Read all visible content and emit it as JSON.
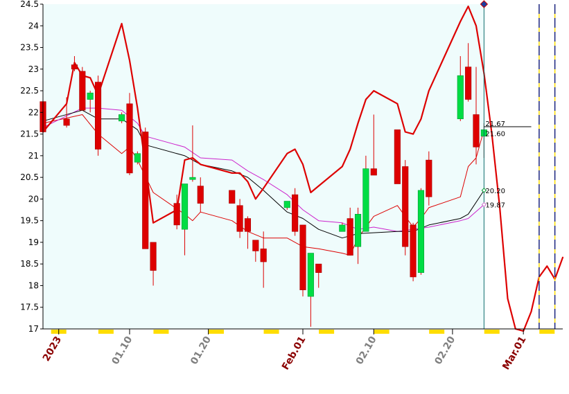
{
  "chart_data": {
    "type": "candlestick",
    "ylim": [
      17,
      24.5
    ],
    "y_ticks": [
      "24.5",
      "24",
      "23.5",
      "23",
      "22.5",
      "22",
      "21.5",
      "21",
      "20.5",
      "20",
      "19.5",
      "19",
      "18.5",
      "18",
      "17.5",
      "17"
    ],
    "x_date_range": [
      "2022-12-30",
      "2023-03-06"
    ],
    "x_tick_labels": [
      {
        "date": "2023-01-01",
        "label": "2023",
        "color": "#8b0000"
      },
      {
        "date": "2023-01-10",
        "label": "01.10",
        "color": "#808080"
      },
      {
        "date": "2023-01-20",
        "label": "01.20",
        "color": "#808080"
      },
      {
        "date": "2023-02-01",
        "label": "Feb.01",
        "color": "#8b0000"
      },
      {
        "date": "2023-02-10",
        "label": "02.10",
        "color": "#808080"
      },
      {
        "date": "2023-02-20",
        "label": "02.20",
        "color": "#808080"
      },
      {
        "date": "2023-03-01",
        "label": "Mar.01",
        "color": "#8b0000"
      }
    ],
    "history_end": "2023-02-24",
    "colors": {
      "plot_bg": "#effcfc",
      "up": "#00dd44",
      "down": "#dd0000",
      "ma_black": "#000000",
      "ma_magenta": "#cc22cc",
      "band": "#dd0000",
      "projection": "#dd0000",
      "marker": "#ffdd00",
      "vline": "#1a237e"
    },
    "candles": [
      {
        "date": "2022-12-30",
        "open": 22.25,
        "high": 22.3,
        "low": 21.4,
        "close": 21.55
      },
      {
        "date": "2023-01-02",
        "open": 21.85,
        "high": 22.35,
        "low": 21.65,
        "close": 21.7
      },
      {
        "date": "2023-01-03",
        "open": 23.1,
        "high": 23.3,
        "low": 22.95,
        "close": 23.0
      },
      {
        "date": "2023-01-04",
        "open": 22.95,
        "high": 23.05,
        "low": 22.05,
        "close": 22.05
      },
      {
        "date": "2023-01-05",
        "open": 22.3,
        "high": 22.5,
        "low": 22.0,
        "close": 22.45
      },
      {
        "date": "2023-01-06",
        "open": 22.7,
        "high": 22.85,
        "low": 21.0,
        "close": 21.15
      },
      {
        "date": "2023-01-09",
        "open": 21.8,
        "high": 22.0,
        "low": 21.75,
        "close": 21.95
      },
      {
        "date": "2023-01-10",
        "open": 22.2,
        "high": 22.45,
        "low": 20.55,
        "close": 20.6
      },
      {
        "date": "2023-01-11",
        "open": 20.85,
        "high": 21.1,
        "low": 20.8,
        "close": 21.05
      },
      {
        "date": "2023-01-12",
        "open": 21.55,
        "high": 21.65,
        "low": 18.85,
        "close": 18.85
      },
      {
        "date": "2023-01-13",
        "open": 19.0,
        "high": 19.0,
        "low": 18.0,
        "close": 18.35
      },
      {
        "date": "2023-01-16",
        "open": 19.9,
        "high": 20.1,
        "low": 19.3,
        "close": 19.4
      },
      {
        "date": "2023-01-17",
        "open": 19.3,
        "high": 20.35,
        "low": 18.7,
        "close": 20.35
      },
      {
        "date": "2023-01-18",
        "open": 20.45,
        "high": 21.7,
        "low": 20.4,
        "close": 20.5
      },
      {
        "date": "2023-01-19",
        "open": 20.3,
        "high": 20.5,
        "low": 19.7,
        "close": 19.9
      },
      {
        "date": "2023-01-23",
        "open": 20.2,
        "high": 20.2,
        "low": 19.9,
        "close": 19.9
      },
      {
        "date": "2023-01-24",
        "open": 19.85,
        "high": 20.0,
        "low": 19.1,
        "close": 19.25
      },
      {
        "date": "2023-01-25",
        "open": 19.55,
        "high": 19.6,
        "low": 18.85,
        "close": 19.25
      },
      {
        "date": "2023-01-26",
        "open": 19.05,
        "high": 19.05,
        "low": 18.55,
        "close": 18.8
      },
      {
        "date": "2023-01-27",
        "open": 18.85,
        "high": 19.25,
        "low": 17.95,
        "close": 18.55
      },
      {
        "date": "2023-01-30",
        "open": 19.8,
        "high": 19.95,
        "low": 19.75,
        "close": 19.95
      },
      {
        "date": "2023-01-31",
        "open": 20.1,
        "high": 20.25,
        "low": 19.15,
        "close": 19.25
      },
      {
        "date": "2023-02-01",
        "open": 19.4,
        "high": 19.4,
        "low": 17.75,
        "close": 17.9
      },
      {
        "date": "2023-02-02",
        "open": 17.75,
        "high": 18.75,
        "low": 17.05,
        "close": 18.75
      },
      {
        "date": "2023-02-03",
        "open": 18.5,
        "high": 18.5,
        "low": 17.95,
        "close": 18.3
      },
      {
        "date": "2023-02-06",
        "open": 19.25,
        "high": 19.45,
        "low": 19.25,
        "close": 19.4
      },
      {
        "date": "2023-02-07",
        "open": 19.55,
        "high": 19.8,
        "low": 18.7,
        "close": 18.7
      },
      {
        "date": "2023-02-08",
        "open": 18.9,
        "high": 19.8,
        "low": 18.5,
        "close": 19.65
      },
      {
        "date": "2023-02-09",
        "open": 19.25,
        "high": 21.0,
        "low": 19.25,
        "close": 20.7
      },
      {
        "date": "2023-02-10",
        "open": 20.7,
        "high": 21.95,
        "low": 20.6,
        "close": 20.55
      },
      {
        "date": "2023-02-13",
        "open": 21.6,
        "high": 21.6,
        "low": 20.35,
        "close": 20.35
      },
      {
        "date": "2023-02-14",
        "open": 20.75,
        "high": 20.9,
        "low": 18.7,
        "close": 18.9
      },
      {
        "date": "2023-02-15",
        "open": 19.4,
        "high": 19.45,
        "low": 18.1,
        "close": 18.2
      },
      {
        "date": "2023-02-16",
        "open": 18.3,
        "high": 20.25,
        "low": 18.25,
        "close": 20.2
      },
      {
        "date": "2023-02-17",
        "open": 20.9,
        "high": 21.1,
        "low": 19.85,
        "close": 20.05
      },
      {
        "date": "2023-02-21",
        "open": 21.85,
        "high": 23.3,
        "low": 21.8,
        "close": 22.85
      },
      {
        "date": "2023-02-22",
        "open": 23.05,
        "high": 23.6,
        "low": 22.25,
        "close": 22.3
      },
      {
        "date": "2023-02-23",
        "open": 21.95,
        "high": 23.05,
        "low": 20.8,
        "close": 21.2
      },
      {
        "date": "2023-02-24",
        "open": 21.45,
        "high": 21.75,
        "low": 20.95,
        "close": 21.6
      }
    ],
    "ma_black": [
      {
        "date": "2022-12-30",
        "value": 21.8
      },
      {
        "date": "2023-01-04",
        "value": 22.05
      },
      {
        "date": "2023-01-06",
        "value": 21.85
      },
      {
        "date": "2023-01-09",
        "value": 21.85
      },
      {
        "date": "2023-01-11",
        "value": 21.6
      },
      {
        "date": "2023-01-12",
        "value": 21.25
      },
      {
        "date": "2023-01-17",
        "value": 21.0
      },
      {
        "date": "2023-01-19",
        "value": 20.8
      },
      {
        "date": "2023-01-23",
        "value": 20.65
      },
      {
        "date": "2023-01-25",
        "value": 20.5
      },
      {
        "date": "2023-01-27",
        "value": 20.2
      },
      {
        "date": "2023-01-30",
        "value": 19.7
      },
      {
        "date": "2023-02-01",
        "value": 19.55
      },
      {
        "date": "2023-02-03",
        "value": 19.3
      },
      {
        "date": "2023-02-06",
        "value": 19.1
      },
      {
        "date": "2023-02-08",
        "value": 19.2
      },
      {
        "date": "2023-02-13",
        "value": 19.25
      },
      {
        "date": "2023-02-15",
        "value": 19.25
      },
      {
        "date": "2023-02-17",
        "value": 19.4
      },
      {
        "date": "2023-02-21",
        "value": 19.55
      },
      {
        "date": "2023-02-22",
        "value": 19.65
      },
      {
        "date": "2023-02-24",
        "value": 20.2
      }
    ],
    "ma_magenta": [
      {
        "date": "2022-12-30",
        "value": 21.65
      },
      {
        "date": "2023-01-04",
        "value": 22.1
      },
      {
        "date": "2023-01-06",
        "value": 22.1
      },
      {
        "date": "2023-01-09",
        "value": 22.05
      },
      {
        "date": "2023-01-11",
        "value": 21.75
      },
      {
        "date": "2023-01-12",
        "value": 21.45
      },
      {
        "date": "2023-01-17",
        "value": 21.2
      },
      {
        "date": "2023-01-19",
        "value": 20.95
      },
      {
        "date": "2023-01-23",
        "value": 20.9
      },
      {
        "date": "2023-01-25",
        "value": 20.65
      },
      {
        "date": "2023-01-27",
        "value": 20.45
      },
      {
        "date": "2023-01-30",
        "value": 20.1
      },
      {
        "date": "2023-02-01",
        "value": 19.75
      },
      {
        "date": "2023-02-03",
        "value": 19.5
      },
      {
        "date": "2023-02-06",
        "value": 19.45
      },
      {
        "date": "2023-02-08",
        "value": 19.3
      },
      {
        "date": "2023-02-10",
        "value": 19.35
      },
      {
        "date": "2023-02-13",
        "value": 19.25
      },
      {
        "date": "2023-02-15",
        "value": 19.3
      },
      {
        "date": "2023-02-17",
        "value": 19.35
      },
      {
        "date": "2023-02-21",
        "value": 19.5
      },
      {
        "date": "2023-02-22",
        "value": 19.55
      },
      {
        "date": "2023-02-24",
        "value": 19.87
      }
    ],
    "band_upper": [
      {
        "date": "2022-12-30",
        "value": 21.55
      },
      {
        "date": "2023-01-02",
        "value": 22.2
      },
      {
        "date": "2023-01-03",
        "value": 23.15
      },
      {
        "date": "2023-01-04",
        "value": 22.85
      },
      {
        "date": "2023-01-05",
        "value": 22.8
      },
      {
        "date": "2023-01-06",
        "value": 22.4
      },
      {
        "date": "2023-01-09",
        "value": 24.05
      },
      {
        "date": "2023-01-10",
        "value": 23.2
      },
      {
        "date": "2023-01-11",
        "value": 22.1
      },
      {
        "date": "2023-01-12",
        "value": 20.8
      },
      {
        "date": "2023-01-13",
        "value": 19.45
      },
      {
        "date": "2023-01-16",
        "value": 19.75
      },
      {
        "date": "2023-01-17",
        "value": 20.9
      },
      {
        "date": "2023-01-18",
        "value": 20.95
      },
      {
        "date": "2023-01-19",
        "value": 20.8
      },
      {
        "date": "2023-01-23",
        "value": 20.6
      },
      {
        "date": "2023-01-24",
        "value": 20.6
      },
      {
        "date": "2023-01-25",
        "value": 20.4
      },
      {
        "date": "2023-01-26",
        "value": 20.0
      },
      {
        "date": "2023-01-27",
        "value": 20.25
      },
      {
        "date": "2023-01-30",
        "value": 21.05
      },
      {
        "date": "2023-01-31",
        "value": 21.15
      },
      {
        "date": "2023-02-01",
        "value": 20.8
      },
      {
        "date": "2023-02-02",
        "value": 20.15
      },
      {
        "date": "2023-02-03",
        "value": 20.3
      },
      {
        "date": "2023-02-06",
        "value": 20.75
      },
      {
        "date": "2023-02-07",
        "value": 21.15
      },
      {
        "date": "2023-02-08",
        "value": 21.75
      },
      {
        "date": "2023-02-09",
        "value": 22.3
      },
      {
        "date": "2023-02-10",
        "value": 22.5
      },
      {
        "date": "2023-02-13",
        "value": 22.2
      },
      {
        "date": "2023-02-14",
        "value": 21.55
      },
      {
        "date": "2023-02-15",
        "value": 21.5
      },
      {
        "date": "2023-02-16",
        "value": 21.85
      },
      {
        "date": "2023-02-17",
        "value": 22.5
      },
      {
        "date": "2023-02-21",
        "value": 24.1
      },
      {
        "date": "2023-02-22",
        "value": 24.45
      },
      {
        "date": "2023-02-23",
        "value": 24.0
      },
      {
        "date": "2023-02-24",
        "value": 22.9
      }
    ],
    "band_lower": [
      {
        "date": "2022-12-30",
        "value": 21.75
      },
      {
        "date": "2023-01-04",
        "value": 21.95
      },
      {
        "date": "2023-01-06",
        "value": 21.5
      },
      {
        "date": "2023-01-09",
        "value": 21.05
      },
      {
        "date": "2023-01-10",
        "value": 21.2
      },
      {
        "date": "2023-01-11",
        "value": 20.9
      },
      {
        "date": "2023-01-13",
        "value": 20.15
      },
      {
        "date": "2023-01-17",
        "value": 19.65
      },
      {
        "date": "2023-01-18",
        "value": 19.5
      },
      {
        "date": "2023-01-19",
        "value": 19.7
      },
      {
        "date": "2023-01-23",
        "value": 19.5
      },
      {
        "date": "2023-01-25",
        "value": 19.25
      },
      {
        "date": "2023-01-27",
        "value": 19.1
      },
      {
        "date": "2023-01-30",
        "value": 19.1
      },
      {
        "date": "2023-02-01",
        "value": 18.9
      },
      {
        "date": "2023-02-03",
        "value": 18.85
      },
      {
        "date": "2023-02-06",
        "value": 18.75
      },
      {
        "date": "2023-02-07",
        "value": 18.7
      },
      {
        "date": "2023-02-08",
        "value": 19.1
      },
      {
        "date": "2023-02-10",
        "value": 19.6
      },
      {
        "date": "2023-02-13",
        "value": 19.85
      },
      {
        "date": "2023-02-14",
        "value": 19.6
      },
      {
        "date": "2023-02-15",
        "value": 19.35
      },
      {
        "date": "2023-02-16",
        "value": 19.55
      },
      {
        "date": "2023-02-17",
        "value": 19.8
      },
      {
        "date": "2023-02-21",
        "value": 20.05
      },
      {
        "date": "2023-02-22",
        "value": 20.75
      },
      {
        "date": "2023-02-23",
        "value": 20.95
      },
      {
        "date": "2023-02-24",
        "value": 21.6
      }
    ],
    "projection": [
      {
        "date": "2023-02-24",
        "value": 22.9
      },
      {
        "date": "2023-02-25",
        "value": 21.5
      },
      {
        "date": "2023-02-26",
        "value": 19.8
      },
      {
        "date": "2023-02-27",
        "value": 17.7
      },
      {
        "date": "2023-02-28",
        "value": 17.0
      },
      {
        "date": "2023-03-01",
        "value": 16.95
      },
      {
        "date": "2023-03-02",
        "value": 17.4
      },
      {
        "date": "2023-03-03",
        "value": 18.2
      },
      {
        "date": "2023-03-04",
        "value": 18.45
      },
      {
        "date": "2023-03-05",
        "value": 18.15
      },
      {
        "date": "2023-03-06",
        "value": 18.65
      }
    ],
    "value_labels": [
      {
        "text": "21.67",
        "value": 21.67
      },
      {
        "text": "21.60",
        "value": 21.6
      },
      {
        "text": "20.20",
        "value": 20.2
      },
      {
        "text": "19.87",
        "value": 19.87
      }
    ],
    "marker_diamond": {
      "date": "2023-02-24",
      "value": 24.5
    },
    "hline": {
      "value": 21.67,
      "from": "2023-02-24",
      "to": "2023-03-02"
    },
    "dashed_vlines": [
      "2023-03-03",
      "2023-03-05"
    ],
    "week_markers": [
      "2023-01-01",
      "2023-01-07",
      "2023-01-14",
      "2023-01-21",
      "2023-01-28",
      "2023-02-04",
      "2023-02-11",
      "2023-02-18",
      "2023-02-25",
      "2023-03-04"
    ]
  }
}
